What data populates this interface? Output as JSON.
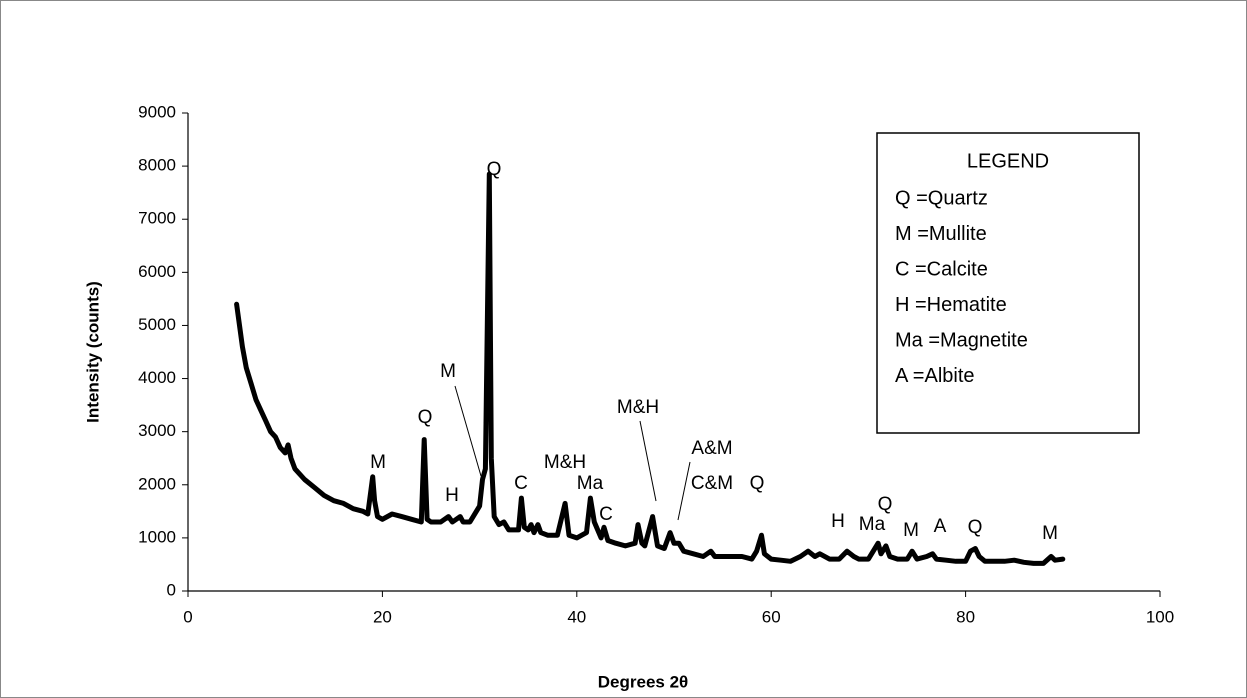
{
  "chart_data": {
    "type": "line",
    "x_label": "Degrees 2θ",
    "y_label": "Intensity (counts)",
    "xlim": [
      0,
      100
    ],
    "xticks": [
      0,
      20,
      40,
      60,
      80,
      100
    ],
    "ylim": [
      0,
      9000
    ],
    "yticks": [
      0,
      1000,
      2000,
      3000,
      4000,
      5000,
      6000,
      7000,
      8000,
      9000
    ],
    "grid": false,
    "x": [
      5,
      5.3,
      5.6,
      6,
      6.5,
      7,
      7.5,
      8,
      8.5,
      9,
      9.5,
      10,
      10.3,
      10.6,
      11,
      12,
      13,
      14,
      15,
      16,
      17,
      18,
      18.5,
      19,
      19.2,
      19.5,
      20,
      21,
      22,
      23,
      24,
      24.3,
      24.6,
      25,
      26,
      26.8,
      27.2,
      28,
      28.3,
      29,
      30,
      30.3,
      30.6,
      31,
      31.2,
      31.5,
      32,
      32.5,
      33,
      34,
      34.3,
      34.6,
      35,
      35.3,
      35.6,
      36,
      36.3,
      37,
      38,
      38.8,
      39.2,
      40,
      41,
      41.4,
      41.8,
      42.5,
      42.8,
      43.2,
      44,
      45,
      46,
      46.3,
      46.7,
      47,
      47.8,
      48.3,
      49,
      49.6,
      50,
      50.5,
      51,
      52,
      53,
      53.8,
      54.2,
      55,
      56,
      57,
      58,
      58.5,
      59,
      59.3,
      60,
      61,
      62,
      63,
      63.8,
      64.5,
      65,
      66,
      67,
      67.8,
      68.5,
      69,
      70,
      71,
      71.3,
      71.8,
      72.2,
      73,
      74,
      74.5,
      75,
      76,
      76.6,
      77,
      78,
      79,
      80,
      80.5,
      81,
      81.4,
      82,
      83,
      84,
      85,
      86,
      87,
      88,
      88.8,
      89.2,
      90
    ],
    "series": [
      {
        "color": "#000000",
        "values": [
          5400,
          5000,
          4600,
          4200,
          3900,
          3600,
          3400,
          3200,
          3000,
          2900,
          2700,
          2600,
          2750,
          2500,
          2300,
          2100,
          1950,
          1800,
          1700,
          1650,
          1550,
          1500,
          1450,
          2150,
          1700,
          1400,
          1350,
          1450,
          1400,
          1350,
          1300,
          2850,
          1350,
          1300,
          1300,
          1400,
          1300,
          1400,
          1300,
          1300,
          1600,
          2100,
          2300,
          7850,
          2500,
          1400,
          1250,
          1300,
          1150,
          1150,
          1750,
          1200,
          1150,
          1250,
          1100,
          1250,
          1100,
          1050,
          1050,
          1650,
          1050,
          1000,
          1100,
          1750,
          1300,
          1000,
          1200,
          950,
          900,
          850,
          900,
          1250,
          900,
          850,
          1400,
          850,
          800,
          1100,
          900,
          900,
          750,
          700,
          650,
          750,
          650,
          650,
          650,
          650,
          600,
          750,
          1050,
          700,
          600,
          580,
          560,
          650,
          750,
          650,
          700,
          600,
          600,
          750,
          650,
          600,
          600,
          900,
          700,
          850,
          650,
          600,
          600,
          750,
          600,
          650,
          700,
          600,
          580,
          560,
          560,
          750,
          800,
          650,
          560,
          560,
          560,
          580,
          540,
          520,
          520,
          650,
          580,
          600
        ]
      }
    ],
    "annotations": [
      "Q",
      "M",
      "M",
      "Q",
      "H",
      "C",
      "M&H",
      "Ma",
      "C",
      "M&H",
      "A&M",
      "C&M",
      "Q",
      "H",
      "Ma",
      "Q",
      "M",
      "A",
      "Q",
      "M"
    ],
    "legend_box": {
      "title": "LEGEND",
      "entries": [
        "Q =Quartz",
        "M =Mullite",
        "C =Calcite",
        "H =Hematite",
        "Ma =Magnetite",
        "A =Albite"
      ]
    }
  }
}
